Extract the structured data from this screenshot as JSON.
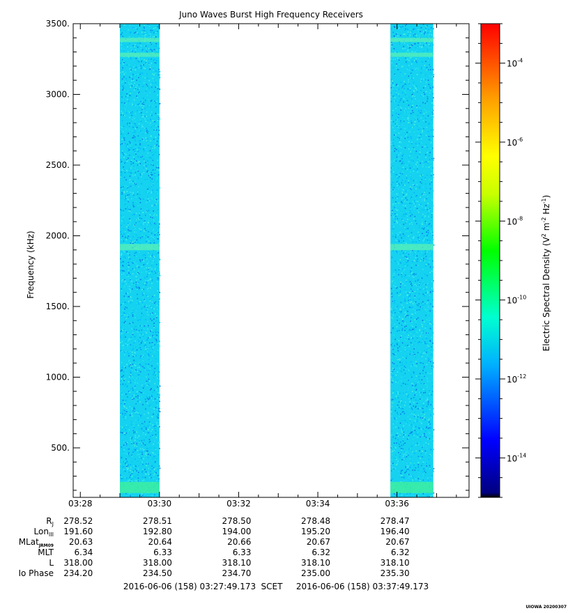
{
  "chart_data": {
    "type": "heatmap",
    "title": "Juno Waves Burst High Frequency Receivers",
    "ylabel": "Frequency (kHz)",
    "ylim": [
      150,
      3500
    ],
    "yticks": [
      500,
      1000,
      1500,
      2000,
      2500,
      3000,
      3500
    ],
    "ytick_labels": [
      "500.",
      "1000.",
      "1500.",
      "2000.",
      "2500.",
      "3000.",
      "3500."
    ],
    "x_tick_labels": [
      "03:28",
      "03:30",
      "03:32",
      "03:34",
      "03:36"
    ],
    "x_range": [
      "03:27:49.173",
      "03:37:49.173"
    ],
    "bursts": [
      {
        "start": "03:29:00",
        "end": "03:30:00"
      },
      {
        "start": "03:35:50",
        "end": "03:36:55"
      }
    ],
    "bands_khz": [
      220,
      1920,
      3385,
      3280
    ],
    "background_level": "1e-12",
    "colorbar": {
      "label": "Electric Spectral Density (V",
      "label_sup1": "2",
      "label_mid": " m",
      "label_sup2": "-2",
      "label_hz": " Hz",
      "label_sup3": "-1",
      "label_end": ")",
      "log_min": -15,
      "log_max": -3,
      "ticks": [
        {
          "base": "10",
          "exp": "-4",
          "value": -4
        },
        {
          "base": "10",
          "exp": "-6",
          "value": -6
        },
        {
          "base": "10",
          "exp": "-8",
          "value": -8
        },
        {
          "base": "10",
          "exp": "-10",
          "value": -10
        },
        {
          "base": "10",
          "exp": "-12",
          "value": -12
        },
        {
          "base": "10",
          "exp": "-14",
          "value": -14
        }
      ]
    }
  },
  "ephemeris": {
    "rows": [
      {
        "label": "R",
        "sub": "J",
        "values": [
          "278.52",
          "278.51",
          "278.50",
          "278.48",
          "278.47"
        ]
      },
      {
        "label": "Lon",
        "sub": "III",
        "values": [
          "191.60",
          "192.80",
          "194.00",
          "195.20",
          "196.40"
        ]
      },
      {
        "label": "MLat",
        "sub": "JRM09",
        "values": [
          "20.63",
          "20.64",
          "20.66",
          "20.67",
          "20.67"
        ]
      },
      {
        "label": "MLT",
        "sub": "",
        "values": [
          "6.34",
          "6.33",
          "6.33",
          "6.32",
          "6.32"
        ]
      },
      {
        "label": "L",
        "sub": "",
        "values": [
          "318.00",
          "318.00",
          "318.10",
          "318.10",
          "318.10"
        ]
      },
      {
        "label": "Io Phase",
        "sub": "",
        "values": [
          "234.20",
          "234.50",
          "234.70",
          "235.00",
          "235.30"
        ]
      }
    ]
  },
  "footer": {
    "start_time": "2016-06-06 (158) 03:27:49.173",
    "scet": "SCET",
    "end_time": "2016-06-06 (158) 03:37:49.173",
    "credit": "UIOWA 20200307"
  }
}
